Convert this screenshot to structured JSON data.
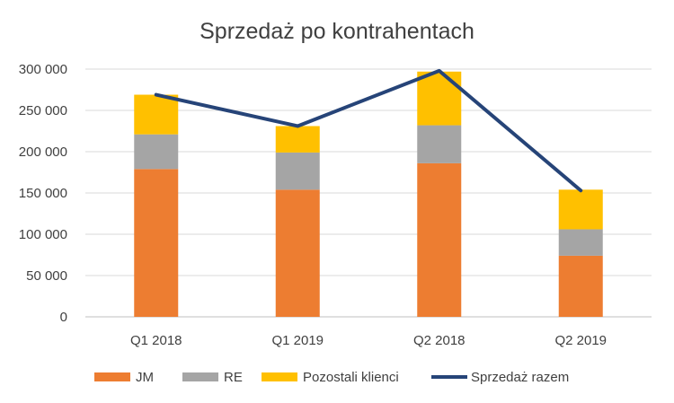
{
  "chart_data": {
    "type": "bar",
    "title": "Sprzedaż po kontrahentach",
    "categories": [
      "Q1 2018",
      "Q1 2019",
      "Q2 2018",
      "Q2 2019"
    ],
    "stacked": true,
    "series": [
      {
        "name": "JM",
        "kind": "bar",
        "color": "#ED7D31",
        "values": [
          179000,
          154000,
          186000,
          74000
        ]
      },
      {
        "name": "RE",
        "kind": "bar",
        "color": "#A5A5A5",
        "values": [
          42000,
          45000,
          46000,
          32000
        ]
      },
      {
        "name": "Pozostali klienci",
        "kind": "bar",
        "color": "#FFC000",
        "values": [
          48000,
          32000,
          65000,
          48000
        ]
      },
      {
        "name": "Sprzedaż razem",
        "kind": "line",
        "color": "#264478",
        "values": [
          269000,
          231000,
          298000,
          153000
        ]
      }
    ],
    "ylim": [
      0,
      300000
    ],
    "yticks": [
      "0",
      "50 000",
      "100 000",
      "150 000",
      "200 000",
      "250 000",
      "300 000"
    ],
    "ytick_values": [
      0,
      50000,
      100000,
      150000,
      200000,
      250000,
      300000
    ],
    "grid": true,
    "legend": "bottom"
  }
}
